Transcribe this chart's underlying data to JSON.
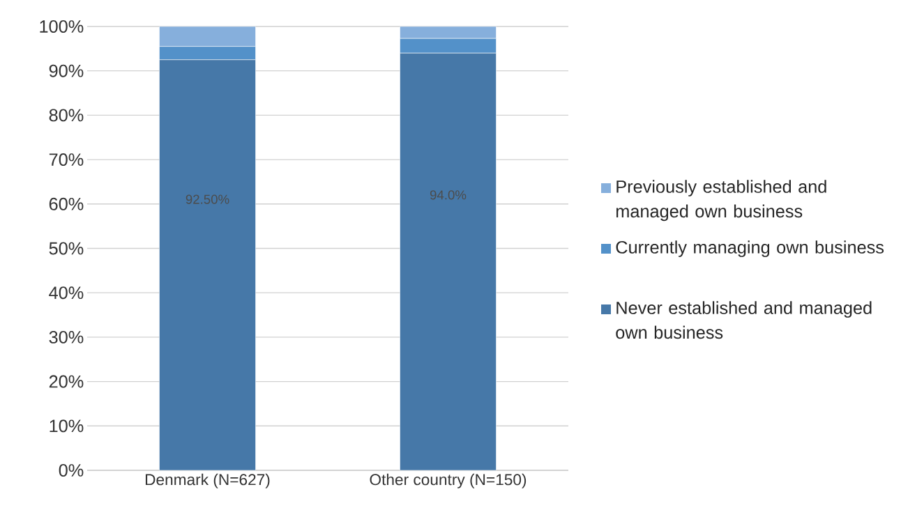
{
  "chart_data": {
    "type": "bar",
    "stacked": true,
    "categories": [
      "Denmark (N=627)",
      "Other country (N=150)"
    ],
    "series": [
      {
        "name": "Never established and managed own business",
        "color": "#4678a8",
        "values": [
          92.5,
          94.0
        ],
        "value_labels": [
          "92.50%",
          "94.0%"
        ]
      },
      {
        "name": "Currently managing own business",
        "color": "#5391c9",
        "values": [
          3.0,
          3.3
        ]
      },
      {
        "name": "Previously established and managed own business",
        "color": "#86afdc",
        "values": [
          4.5,
          2.7
        ]
      }
    ],
    "ylim": [
      0,
      100
    ],
    "yticks": [
      {
        "value": 0,
        "label": "0%"
      },
      {
        "value": 10,
        "label": "10%"
      },
      {
        "value": 20,
        "label": "20%"
      },
      {
        "value": 30,
        "label": "30%"
      },
      {
        "value": 40,
        "label": "40%"
      },
      {
        "value": 50,
        "label": "50%"
      },
      {
        "value": 60,
        "label": "60%"
      },
      {
        "value": 70,
        "label": "70%"
      },
      {
        "value": 80,
        "label": "80%"
      },
      {
        "value": 90,
        "label": "90%"
      },
      {
        "value": 100,
        "label": "100%"
      }
    ],
    "grid": "y",
    "legend": "right"
  }
}
